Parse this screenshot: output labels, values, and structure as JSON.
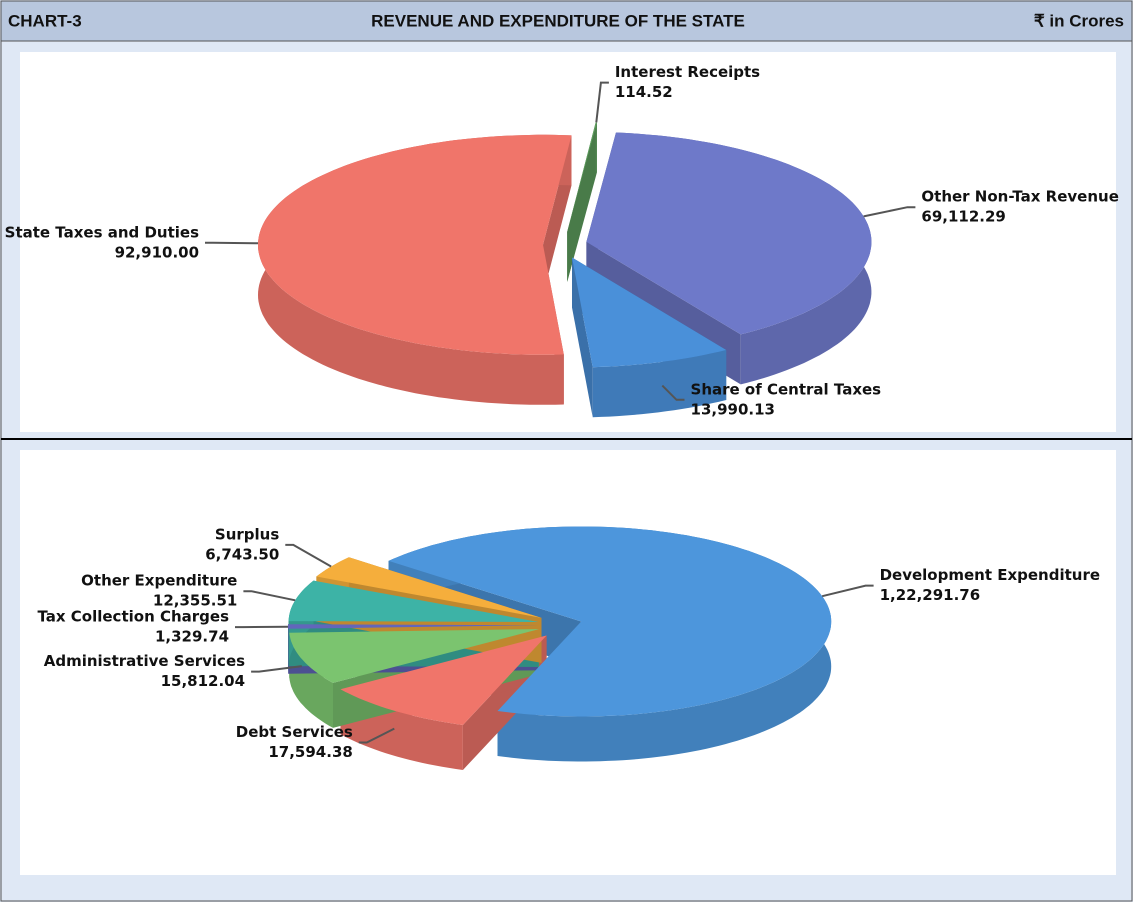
{
  "header": {
    "left": "CHART-3",
    "title": "REVENUE AND EXPENDITURE OF THE STATE",
    "right": "₹ in Crores"
  },
  "chart_data": [
    {
      "type": "pie",
      "categories": [
        "Interest Receipts",
        "Other Non-Tax Revenue",
        "Share of Central Taxes",
        "State Taxes and Duties"
      ],
      "values": [
        114.52,
        69112.29,
        13990.13,
        92910.0
      ],
      "value_labels": [
        "114.52",
        "69,112.29",
        "13,990.13",
        "92,910.00"
      ],
      "colors": [
        "#5e9e5e",
        "#6e79c9",
        "#4a90d9",
        "#f0756a"
      ]
    },
    {
      "type": "pie",
      "categories": [
        "Development Expenditure",
        "Debt Services",
        "Administrative Services",
        "Tax Collection Charges",
        "Other Expenditure",
        "Surplus"
      ],
      "values": [
        122291.76,
        17594.38,
        15812.04,
        1329.74,
        12355.51,
        6743.5
      ],
      "value_labels": [
        "1,22,291.76",
        "17,594.38",
        "15,812.04",
        "1,329.74",
        "12,355.51",
        "6,743.50"
      ],
      "colors": [
        "#4d96dc",
        "#f0756a",
        "#7bc46f",
        "#6266bb",
        "#3db3a6",
        "#f5ae3c"
      ]
    }
  ]
}
